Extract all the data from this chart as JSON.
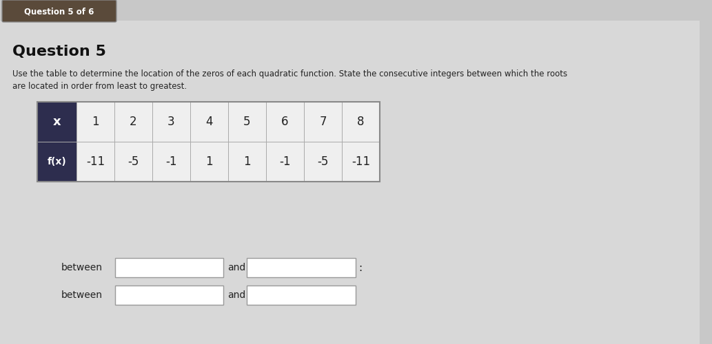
{
  "title": "Question 5",
  "subtitle_line1": "Use the table to determine the location of the zeros of each quadratic function. State the consecutive integers between which the roots",
  "subtitle_line2": "are located in order from least to greatest.",
  "tab_label": "Question 5 of 6",
  "x_values": [
    1,
    2,
    3,
    4,
    5,
    6,
    7,
    8
  ],
  "fx_values": [
    -11,
    -5,
    -1,
    1,
    1,
    -1,
    -5,
    -11
  ],
  "row_header_x": "x",
  "row_header_fx": "f(x)",
  "bg_color": "#c8c8c8",
  "table_header_bg": "#2d2d4e",
  "table_cell_bg": "#efefef",
  "table_cell_bg2": "#e8e8e8",
  "table_border_color": "#aaaaaa",
  "between_label": "between",
  "and_label": "and",
  "input_box_color": "#ffffff",
  "input_box_border": "#999999",
  "white_panel_color": "#dcdcdc",
  "tab_color": "#5a4a3a"
}
